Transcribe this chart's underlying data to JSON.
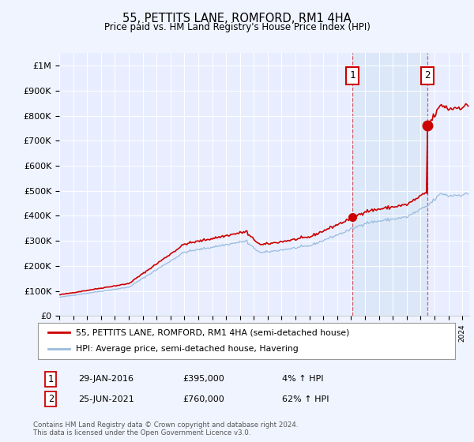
{
  "title": "55, PETTITS LANE, ROMFORD, RM1 4HA",
  "subtitle": "Price paid vs. HM Land Registry's House Price Index (HPI)",
  "ylabel_ticks": [
    "£0",
    "£100K",
    "£200K",
    "£300K",
    "£400K",
    "£500K",
    "£600K",
    "£700K",
    "£800K",
    "£900K",
    "£1M"
  ],
  "ytick_values": [
    0,
    100000,
    200000,
    300000,
    400000,
    500000,
    600000,
    700000,
    800000,
    900000,
    1000000
  ],
  "ylim": [
    0,
    1050000
  ],
  "background_color": "#f0f4ff",
  "plot_bg": "#e8eeff",
  "highlight_bg": "#dce8f8",
  "transaction1_x": 2016.08,
  "transaction1_y": 395000,
  "transaction2_x": 2021.49,
  "transaction2_y": 760000,
  "legend_entry1": "55, PETTITS LANE, ROMFORD, RM1 4HA (semi-detached house)",
  "legend_entry2": "HPI: Average price, semi-detached house, Havering",
  "table_row1": [
    "1",
    "29-JAN-2016",
    "£395,000",
    "4% ↑ HPI"
  ],
  "table_row2": [
    "2",
    "25-JUN-2021",
    "£760,000",
    "62% ↑ HPI"
  ],
  "footer": "Contains HM Land Registry data © Crown copyright and database right 2024.\nThis data is licensed under the Open Government Licence v3.0.",
  "line_color_property": "#cc0000",
  "line_color_hpi": "#99bbdd",
  "vline_color": "#cc0000",
  "xmin": 1995.0,
  "xmax": 2024.5
}
